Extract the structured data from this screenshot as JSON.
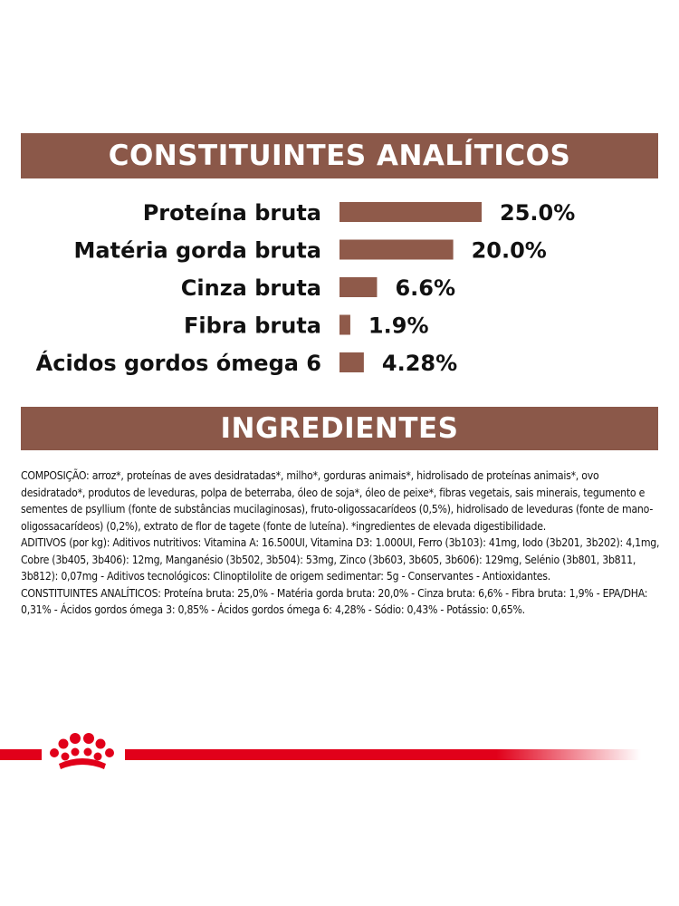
{
  "colors": {
    "accent": "#8b5849",
    "bar": "#8f5a4a",
    "footer_red": "#e1001a"
  },
  "sections": {
    "analytics_title": "CONSTITUINTES ANALÍTICOS",
    "ingredients_title": "INGREDIENTES"
  },
  "chart_data": {
    "type": "bar",
    "orientation": "horizontal",
    "categories": [
      "Proteína bruta",
      "Matéria gorda bruta",
      "Cinza bruta",
      "Fibra bruta",
      "Ácidos gordos ómega 6"
    ],
    "values": [
      25.0,
      20.0,
      6.6,
      1.9,
      4.28
    ],
    "value_labels": [
      "25.0%",
      "20.0%",
      "6.6%",
      "1.9%",
      "4.28%"
    ],
    "title": "CONSTITUINTES ANALÍTICOS",
    "xlabel": "",
    "ylabel": "",
    "xlim": [
      0,
      25.0
    ],
    "grid": false,
    "legend": "none"
  },
  "ingredients": {
    "paragraphs": [
      "COMPOSIÇÃO: arroz*, proteínas de aves desidratadas*, milho*, gorduras animais*, hidrolisado de proteínas animais*, ovo desidratado*, produtos de leveduras, polpa de beterraba, óleo de soja*, óleo de peixe*, fibras vegetais, sais minerais, tegumento e sementes de psyllium (fonte de substâncias mucilaginosas), fruto-oligossacarídeos (0,5%), hidrolisado de leveduras (fonte de mano-oligossacarídeos) (0,2%), extrato de flor de tagete (fonte de luteína). *ingredientes de elevada digestibilidade.",
      "ADITIVOS (por kg): Aditivos nutritivos: Vitamina A: 16.500UI, Vitamina D3: 1.000UI, Ferro (3b103): 41mg, Iodo (3b201, 3b202): 4,1mg, Cobre (3b405, 3b406): 12mg, Manganésio (3b502, 3b504): 53mg, Zinco (3b603, 3b605, 3b606): 129mg, Selénio (3b801, 3b811, 3b812): 0,07mg - Aditivos tecnológicos: Clinoptilolite de origem sedimentar: 5g - Conservantes - Antioxidantes.",
      "CONSTITUINTES ANALÍTICOS: Proteína bruta: 25,0% - Matéria gorda bruta: 20,0% - Cinza bruta: 6,6% - Fibra bruta: 1,9% - EPA/DHA: 0,31% - Ácidos gordos ómega 3: 0,85% - Ácidos gordos ómega 6: 4,28% - Sódio: 0,43% - Potássio: 0,65%."
    ]
  },
  "footer": {
    "logo_icon": "royal-canin-crown-icon"
  }
}
